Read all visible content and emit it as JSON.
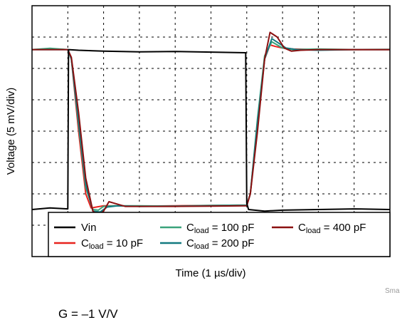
{
  "chart_data": {
    "type": "line",
    "xlabel": "Time (1 µs/div)",
    "ylabel": "Voltage (5 mV/div)",
    "x_unit": "div",
    "y_unit": "div",
    "xlim": [
      0,
      10
    ],
    "ylim": [
      0,
      8
    ],
    "grid": true,
    "legend_position": "bottom-inside",
    "series": [
      {
        "name": "Vin",
        "label_main": "Vin",
        "label_sub": "",
        "color": "#000000",
        "x": [
          0,
          0.5,
          1.0,
          1.02,
          1.3,
          2.0,
          3.0,
          4.0,
          5.0,
          5.97,
          6.0,
          6.05,
          6.5,
          7.0,
          8.0,
          9.0,
          10.0
        ],
        "y": [
          1.5,
          1.55,
          1.52,
          6.6,
          6.58,
          6.55,
          6.53,
          6.54,
          6.52,
          6.5,
          1.7,
          1.5,
          1.45,
          1.48,
          1.5,
          1.52,
          1.5
        ]
      },
      {
        "name": "Cload = 10 pF",
        "label_main": "C",
        "label_sub": "load",
        "label_rest": " = 10 pF",
        "color": "#e8231e",
        "x": [
          0,
          0.5,
          1.0,
          1.1,
          1.3,
          1.5,
          1.65,
          1.8,
          2.0,
          2.3,
          3.0,
          4.0,
          5.0,
          6.0,
          6.1,
          6.3,
          6.5,
          6.65,
          6.8,
          7.0,
          7.3,
          8.0,
          9.0,
          10.0
        ],
        "y": [
          6.6,
          6.62,
          6.6,
          6.3,
          4.0,
          2.0,
          1.55,
          1.58,
          1.62,
          1.62,
          1.61,
          1.62,
          1.63,
          1.64,
          2.0,
          4.2,
          6.3,
          6.75,
          6.7,
          6.65,
          6.62,
          6.6,
          6.6,
          6.6
        ]
      },
      {
        "name": "Cload = 100 pF",
        "label_main": "C",
        "label_sub": "load",
        "label_rest": " = 100 pF",
        "color": "#3aa37b",
        "x": [
          0,
          0.5,
          1.0,
          1.1,
          1.3,
          1.5,
          1.7,
          1.85,
          2.0,
          2.3,
          3.0,
          4.0,
          5.0,
          6.0,
          6.1,
          6.3,
          6.5,
          6.7,
          6.85,
          7.0,
          7.3,
          8.0,
          9.0,
          10.0
        ],
        "y": [
          6.6,
          6.64,
          6.6,
          6.3,
          4.2,
          2.2,
          1.5,
          1.48,
          1.6,
          1.62,
          1.62,
          1.61,
          1.63,
          1.64,
          2.0,
          4.4,
          6.4,
          6.85,
          6.75,
          6.65,
          6.6,
          6.62,
          6.6,
          6.61
        ]
      },
      {
        "name": "Cload = 200 pF",
        "label_main": "C",
        "label_sub": "load",
        "label_rest": " = 200 pF",
        "color": "#137a80",
        "x": [
          0,
          0.5,
          1.0,
          1.1,
          1.3,
          1.5,
          1.7,
          1.9,
          2.1,
          2.4,
          3.0,
          4.0,
          5.0,
          6.0,
          6.1,
          6.3,
          6.5,
          6.7,
          6.9,
          7.1,
          7.4,
          8.0,
          9.0,
          10.0
        ],
        "y": [
          6.6,
          6.6,
          6.6,
          6.3,
          4.3,
          2.3,
          1.45,
          1.42,
          1.58,
          1.62,
          1.6,
          1.61,
          1.62,
          1.63,
          2.0,
          4.3,
          6.3,
          6.95,
          6.8,
          6.65,
          6.6,
          6.58,
          6.6,
          6.6
        ]
      },
      {
        "name": "Cload = 400 pF",
        "label_main": "C",
        "label_sub": "load",
        "label_rest": " = 400 pF",
        "color": "#8b1010",
        "x": [
          0,
          0.5,
          1.0,
          1.1,
          1.3,
          1.5,
          1.7,
          1.85,
          2.0,
          2.15,
          2.3,
          2.6,
          3.0,
          4.0,
          5.0,
          6.0,
          6.1,
          6.3,
          6.5,
          6.65,
          6.85,
          7.05,
          7.25,
          7.5,
          8.0,
          9.0,
          10.0
        ],
        "y": [
          6.6,
          6.6,
          6.6,
          6.35,
          4.6,
          2.5,
          1.45,
          1.32,
          1.45,
          1.75,
          1.7,
          1.6,
          1.6,
          1.6,
          1.61,
          1.62,
          2.0,
          4.0,
          6.3,
          7.15,
          7.0,
          6.65,
          6.55,
          6.58,
          6.6,
          6.6,
          6.6
        ]
      }
    ]
  },
  "watermark": "Sma",
  "annotation": "G = –1 V/V"
}
